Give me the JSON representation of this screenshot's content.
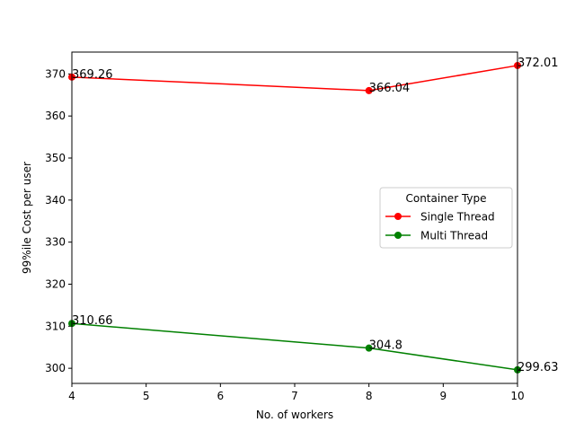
{
  "chart_data": {
    "type": "line",
    "title": "",
    "xlabel": "No. of workers",
    "ylabel": "99%ile Cost per user",
    "xlim": [
      4,
      10
    ],
    "ylim": [
      296.4,
      375.2
    ],
    "xticks": [
      4,
      5,
      6,
      7,
      8,
      9,
      10
    ],
    "yticks": [
      300,
      310,
      320,
      330,
      340,
      350,
      360,
      370
    ],
    "grid": false,
    "legend": {
      "title": "Container Type",
      "position": "center-right"
    },
    "series": [
      {
        "name": "Single Thread",
        "color": "#ff0000",
        "marker": "circle",
        "x": [
          4,
          8,
          10
        ],
        "values": [
          369.26,
          366.04,
          372.01
        ],
        "labels": [
          "369.26",
          "366.04",
          "372.01"
        ]
      },
      {
        "name": "Multi Thread",
        "color": "#008000",
        "marker": "circle",
        "x": [
          4,
          8,
          10
        ],
        "values": [
          310.66,
          304.8,
          299.63
        ],
        "labels": [
          "310.66",
          "304.8",
          "299.63"
        ]
      }
    ]
  }
}
